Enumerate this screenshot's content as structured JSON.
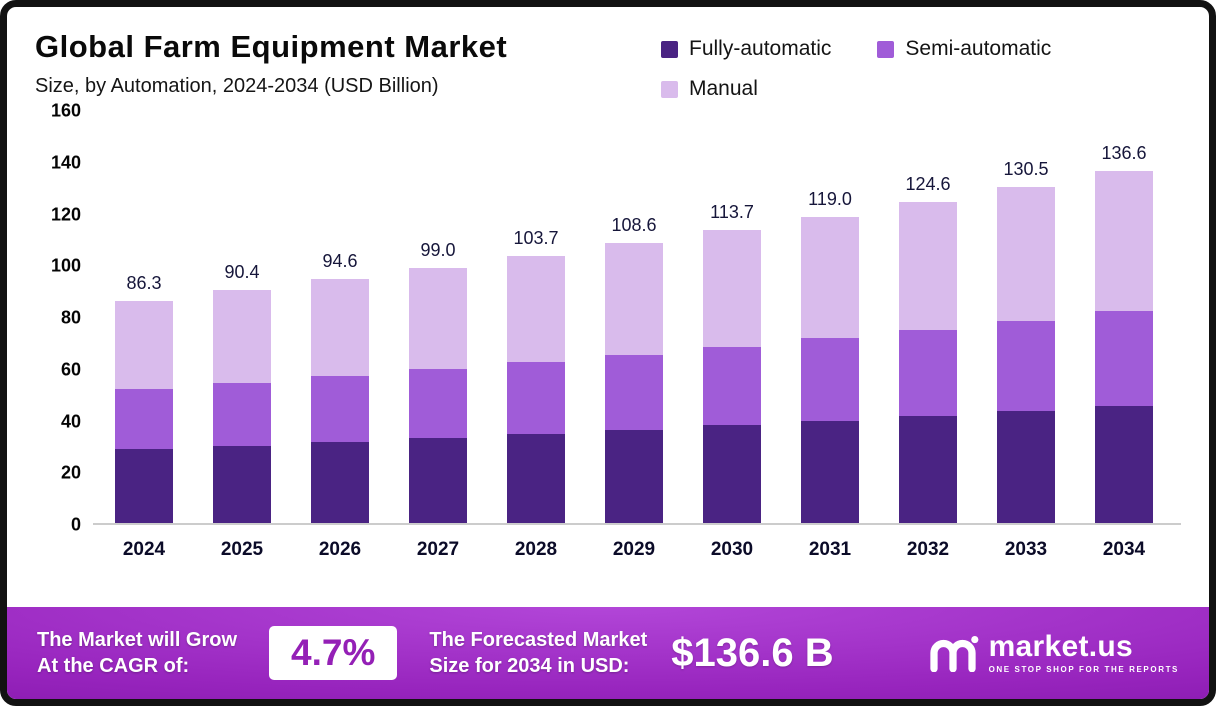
{
  "header": {
    "title": "Global Farm Equipment Market",
    "subtitle": "Size, by Automation, 2024-2034 (USD Billion)"
  },
  "legend": [
    {
      "label": "Fully-automatic",
      "color": "#4a2383"
    },
    {
      "label": "Semi-automatic",
      "color": "#a05cd8"
    },
    {
      "label": "Manual",
      "color": "#d9bbec"
    }
  ],
  "chart_data": {
    "type": "bar",
    "stacked": true,
    "title": "Global Farm Equipment Market",
    "subtitle": "Size, by Automation, 2024-2034 (USD Billion)",
    "unit": "USD Billion",
    "categories": [
      "2024",
      "2025",
      "2026",
      "2027",
      "2028",
      "2029",
      "2030",
      "2031",
      "2032",
      "2033",
      "2034"
    ],
    "series": [
      {
        "name": "Fully-automatic",
        "color": "#4a2383",
        "values": [
          28.8,
          30.1,
          31.5,
          33.0,
          34.6,
          36.2,
          37.9,
          39.7,
          41.6,
          43.5,
          45.6
        ]
      },
      {
        "name": "Semi-automatic",
        "color": "#a05cd8",
        "values": [
          23.2,
          24.3,
          25.5,
          26.7,
          27.9,
          29.2,
          30.6,
          32.0,
          33.5,
          35.1,
          36.7
        ]
      },
      {
        "name": "Manual",
        "color": "#d9bbec",
        "values": [
          34.3,
          36.0,
          37.6,
          39.3,
          41.2,
          43.2,
          45.2,
          47.3,
          49.5,
          51.9,
          54.3
        ]
      }
    ],
    "totals": [
      86.3,
      90.4,
      94.6,
      99.0,
      103.7,
      108.6,
      113.7,
      119.0,
      124.6,
      130.5,
      136.6
    ],
    "ylim": [
      0,
      160
    ],
    "yticks": [
      0,
      20,
      40,
      60,
      80,
      100,
      120,
      140,
      160
    ],
    "grid": false,
    "legend_position": "top-right"
  },
  "footer": {
    "cagr_label_line1": "The Market will Grow",
    "cagr_label_line2": "At the CAGR of:",
    "cagr_value": "4.7%",
    "forecast_label_line1": "The Forecasted Market",
    "forecast_label_line2": "Size for 2034 in USD:",
    "forecast_value": "$136.6 B",
    "brand_name": "market.us",
    "brand_tagline": "ONE STOP SHOP FOR THE REPORTS"
  }
}
